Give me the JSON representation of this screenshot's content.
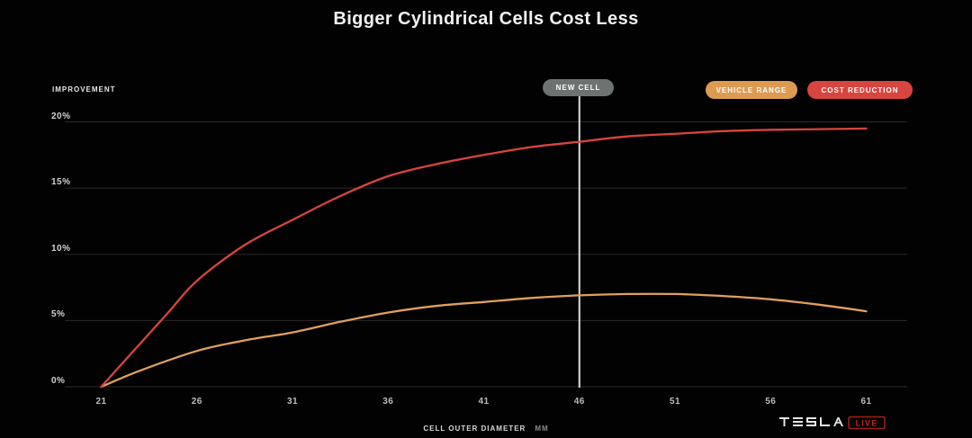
{
  "title": "Bigger Cylindrical Cells Cost Less",
  "chart_data": {
    "type": "line",
    "title": "Bigger Cylindrical Cells Cost Less",
    "xlabel": "CELL OUTER DIAMETER",
    "xlabel_unit": "MM",
    "ylabel": "IMPROVEMENT",
    "x": [
      21,
      26,
      31,
      36,
      41,
      46,
      51,
      56,
      61
    ],
    "x_tick_labels": [
      "21",
      "26",
      "31",
      "36",
      "41",
      "46",
      "51",
      "56",
      "61"
    ],
    "y_ticks": [
      {
        "value": 0,
        "label": "0%"
      },
      {
        "value": 5,
        "label": "5%"
      },
      {
        "value": 10,
        "label": "10%"
      },
      {
        "value": 15,
        "label": "15%"
      },
      {
        "value": 20,
        "label": "20%"
      }
    ],
    "xlim": [
      21,
      61
    ],
    "ylim": [
      0,
      20
    ],
    "grid": true,
    "legend_position": "top-right",
    "series": [
      {
        "name": "VEHICLE RANGE",
        "color": "#dfa05e",
        "values": [
          0,
          2.7,
          4.1,
          5.6,
          6.4,
          6.9,
          7.0,
          6.6,
          5.7
        ],
        "points": [
          [
            21,
            0
          ],
          [
            23,
            1.2
          ],
          [
            26,
            2.7
          ],
          [
            28.5,
            3.5
          ],
          [
            31,
            4.1
          ],
          [
            33.5,
            4.9
          ],
          [
            36,
            5.6
          ],
          [
            38.5,
            6.1
          ],
          [
            41,
            6.4
          ],
          [
            43.5,
            6.7
          ],
          [
            46,
            6.9
          ],
          [
            48.5,
            7.0
          ],
          [
            51,
            7.0
          ],
          [
            53.5,
            6.85
          ],
          [
            56,
            6.6
          ],
          [
            58.5,
            6.2
          ],
          [
            61,
            5.7
          ]
        ]
      },
      {
        "name": "COST REDUCTION",
        "color": "#d7453e",
        "values": [
          0,
          8.0,
          12.6,
          15.9,
          17.5,
          18.5,
          19.1,
          19.4,
          19.5
        ],
        "points": [
          [
            21,
            0
          ],
          [
            23,
            3.2
          ],
          [
            24.5,
            5.6
          ],
          [
            26,
            8.0
          ],
          [
            28.5,
            10.7
          ],
          [
            31,
            12.6
          ],
          [
            33.5,
            14.4
          ],
          [
            36,
            15.9
          ],
          [
            38.5,
            16.8
          ],
          [
            41,
            17.5
          ],
          [
            43.5,
            18.1
          ],
          [
            46,
            18.5
          ],
          [
            48.5,
            18.9
          ],
          [
            51,
            19.1
          ],
          [
            53.5,
            19.3
          ],
          [
            56,
            19.4
          ],
          [
            58.5,
            19.45
          ],
          [
            61,
            19.5
          ]
        ]
      }
    ],
    "annotation": {
      "label": "NEW CELL",
      "x": 46,
      "line_color": "#dedede",
      "badge_color": "#6e7270"
    }
  },
  "colors": {
    "background": "#020202",
    "grid": "#2a2a2a",
    "vehicle_range": "#dfa05e",
    "cost_reduction": "#d7453e",
    "new_cell_badge": "#6e7270",
    "live_red": "#c0251f"
  },
  "brand": {
    "wordmark": "TESLA",
    "badge": "LIVE"
  }
}
